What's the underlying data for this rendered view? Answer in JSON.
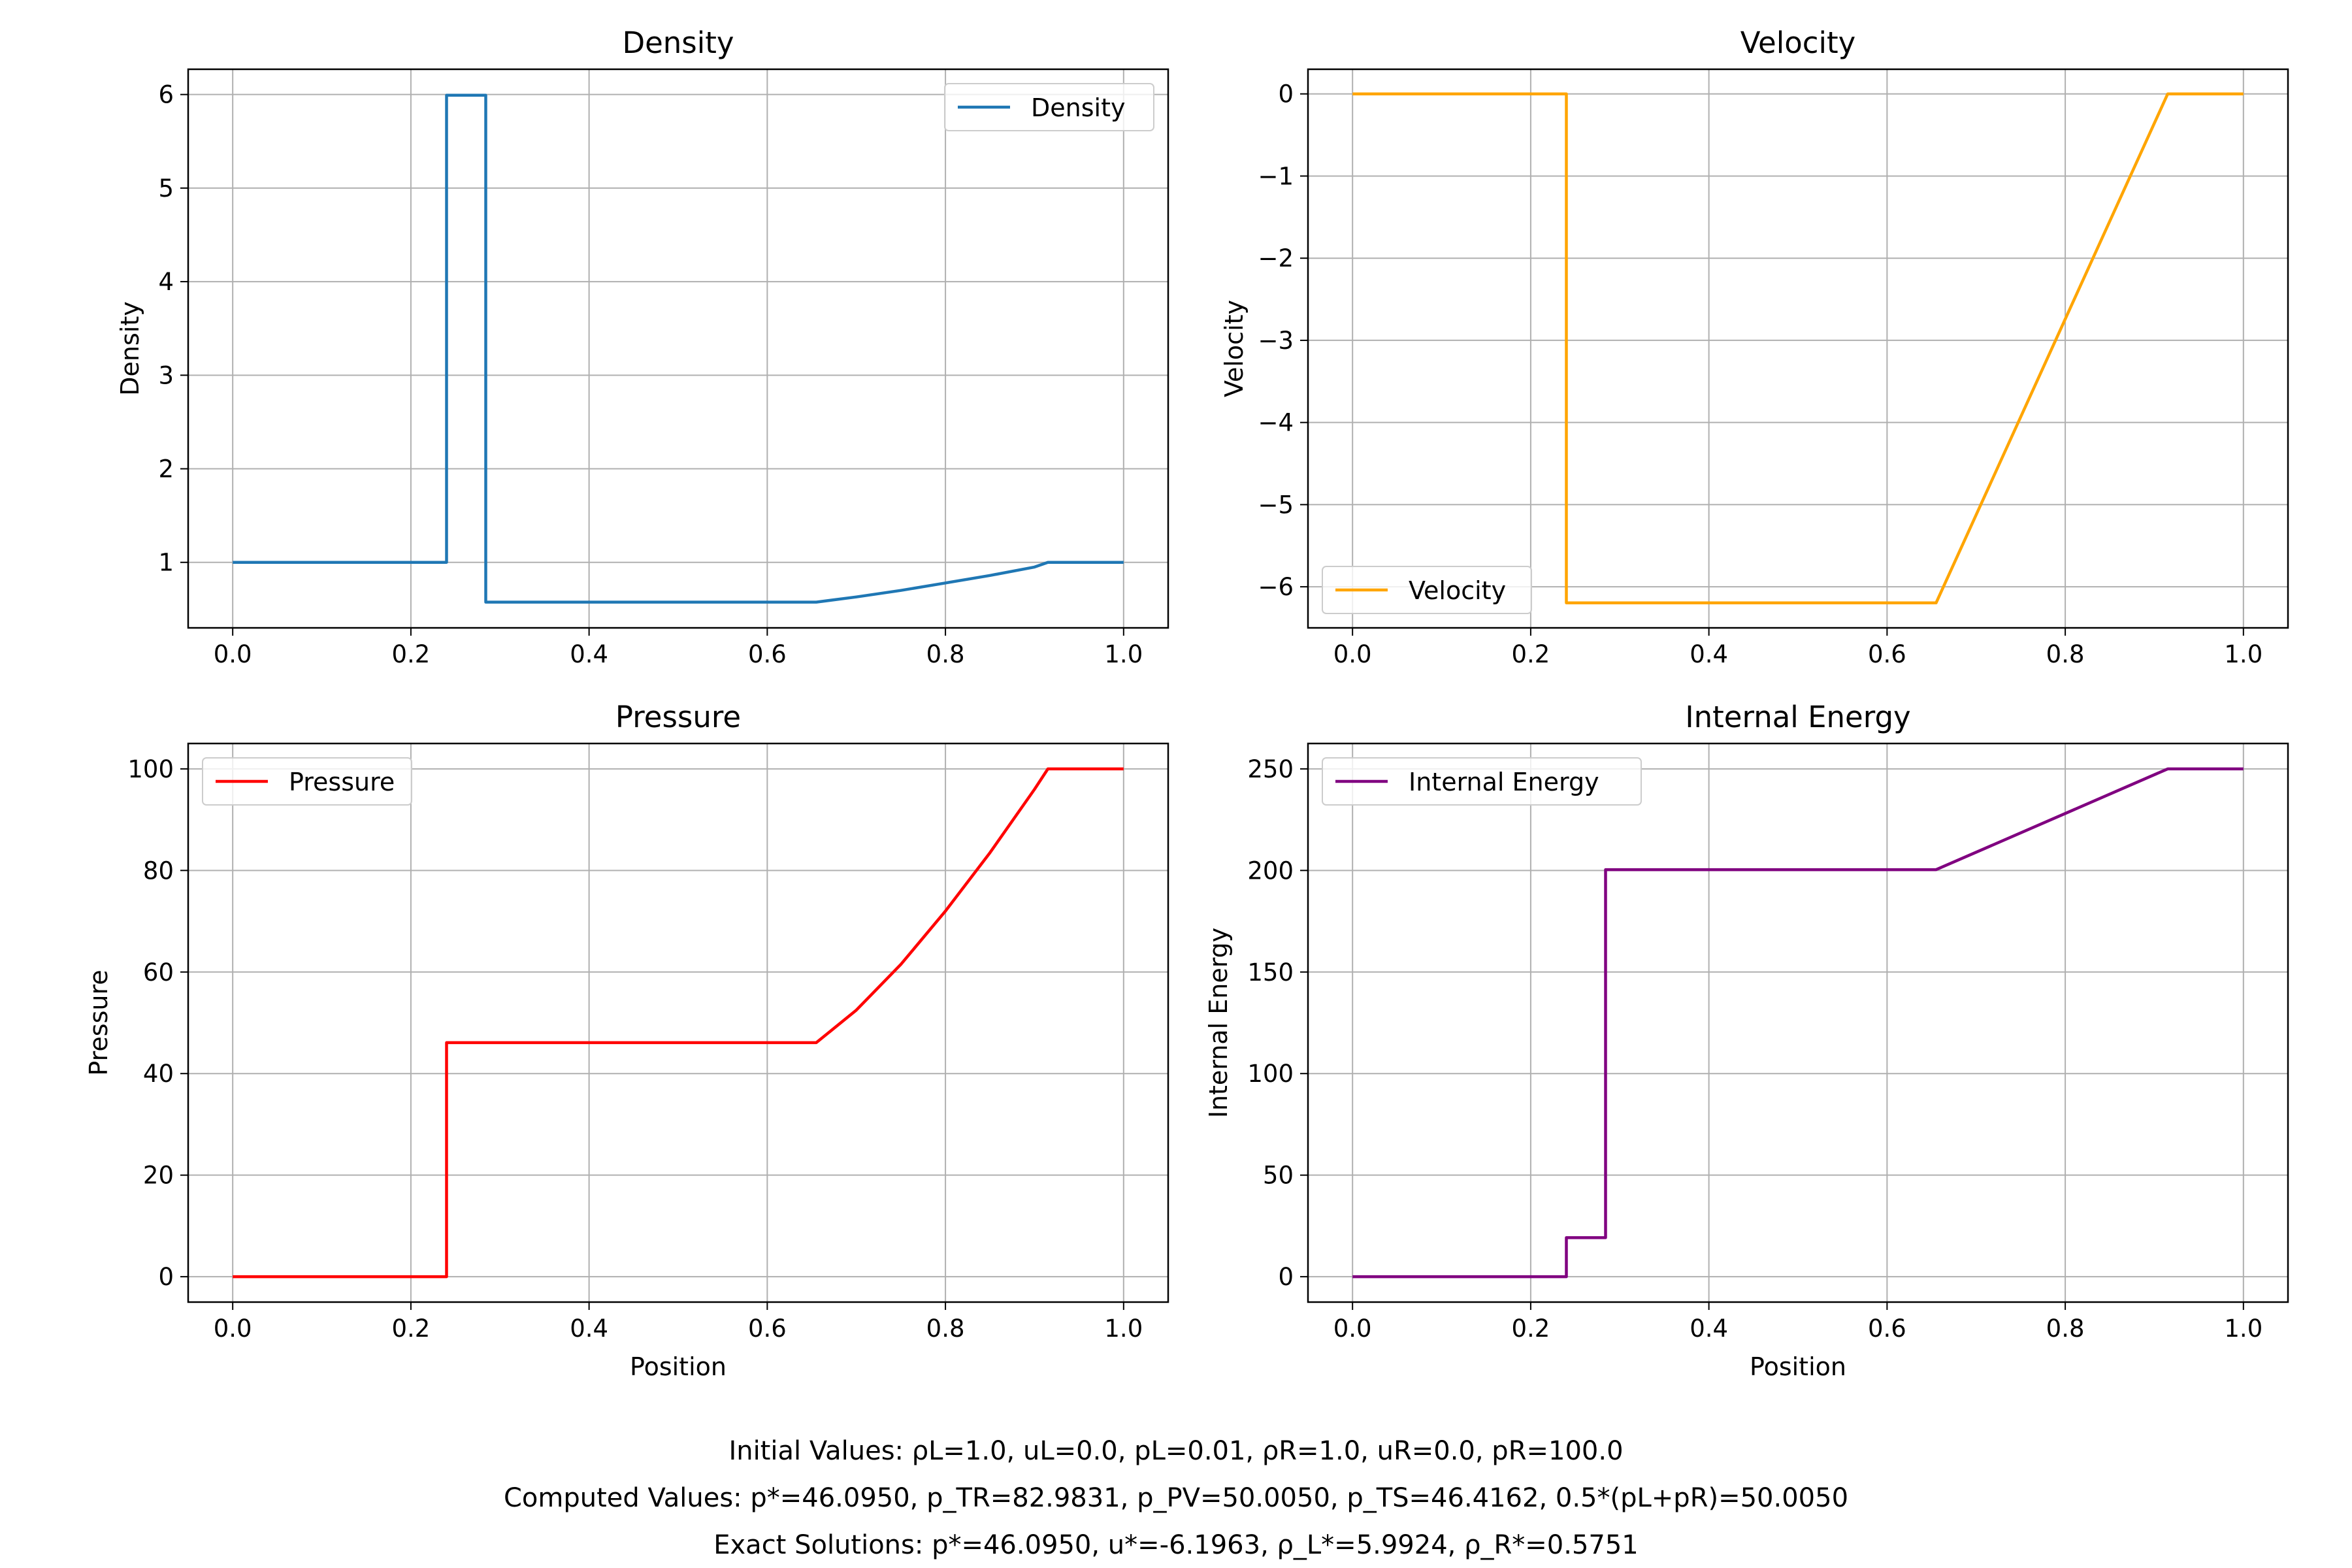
{
  "chart_data": [
    {
      "type": "line",
      "title": "Density",
      "xlabel": "",
      "ylabel": "Density",
      "xlim": [
        -0.05,
        1.05
      ],
      "ylim": [
        0.3,
        6.27
      ],
      "xticks": [
        0.0,
        0.2,
        0.4,
        0.6,
        0.8,
        1.0
      ],
      "xtick_labels": [
        "0.0",
        "0.2",
        "0.4",
        "0.6",
        "0.8",
        "1.0"
      ],
      "yticks": [
        1,
        2,
        3,
        4,
        5,
        6
      ],
      "ytick_labels": [
        "1",
        "2",
        "3",
        "4",
        "5",
        "6"
      ],
      "grid": true,
      "legend": "top-right",
      "series": [
        {
          "name": "Density",
          "color": "#1f77b4",
          "x": [
            0.0,
            0.24,
            0.24,
            0.284,
            0.284,
            0.655,
            0.7,
            0.75,
            0.8,
            0.85,
            0.9,
            0.915,
            1.0
          ],
          "y": [
            1.0,
            1.0,
            5.9924,
            5.9924,
            0.5751,
            0.5751,
            0.63,
            0.7,
            0.78,
            0.86,
            0.95,
            1.0,
            1.0
          ]
        }
      ]
    },
    {
      "type": "line",
      "title": "Velocity",
      "xlabel": "",
      "ylabel": "Velocity",
      "xlim": [
        -0.05,
        1.05
      ],
      "ylim": [
        -6.5,
        0.3
      ],
      "xticks": [
        0.0,
        0.2,
        0.4,
        0.6,
        0.8,
        1.0
      ],
      "xtick_labels": [
        "0.0",
        "0.2",
        "0.4",
        "0.6",
        "0.8",
        "1.0"
      ],
      "yticks": [
        0,
        -1,
        -2,
        -3,
        -4,
        -5,
        -6
      ],
      "ytick_labels": [
        "0",
        "−1",
        "−2",
        "−3",
        "−4",
        "−5",
        "−6"
      ],
      "grid": true,
      "legend": "bottom-left",
      "series": [
        {
          "name": "Velocity",
          "color": "#ffa500",
          "x": [
            0.0,
            0.24,
            0.24,
            0.655,
            0.915,
            1.0
          ],
          "y": [
            0.0,
            0.0,
            -6.1963,
            -6.1963,
            0.0,
            0.0
          ]
        }
      ]
    },
    {
      "type": "line",
      "title": "Pressure",
      "xlabel": "Position",
      "ylabel": "Pressure",
      "xlim": [
        -0.05,
        1.05
      ],
      "ylim": [
        -5,
        105
      ],
      "xticks": [
        0.0,
        0.2,
        0.4,
        0.6,
        0.8,
        1.0
      ],
      "xtick_labels": [
        "0.0",
        "0.2",
        "0.4",
        "0.6",
        "0.8",
        "1.0"
      ],
      "yticks": [
        0,
        20,
        40,
        60,
        80,
        100
      ],
      "ytick_labels": [
        "0",
        "20",
        "40",
        "60",
        "80",
        "100"
      ],
      "grid": true,
      "legend": "top-left",
      "series": [
        {
          "name": "Pressure",
          "color": "#ff0000",
          "x": [
            0.0,
            0.24,
            0.24,
            0.655,
            0.7,
            0.75,
            0.8,
            0.85,
            0.9,
            0.915,
            1.0
          ],
          "y": [
            0.01,
            0.01,
            46.095,
            46.095,
            52.5,
            61.5,
            72.0,
            83.5,
            96.0,
            100.0,
            100.0
          ]
        }
      ]
    },
    {
      "type": "line",
      "title": "Internal Energy",
      "xlabel": "Position",
      "ylabel": "Internal Energy",
      "xlim": [
        -0.05,
        1.05
      ],
      "ylim": [
        -12.5,
        262.5
      ],
      "xticks": [
        0.0,
        0.2,
        0.4,
        0.6,
        0.8,
        1.0
      ],
      "xtick_labels": [
        "0.0",
        "0.2",
        "0.4",
        "0.6",
        "0.8",
        "1.0"
      ],
      "yticks": [
        0,
        50,
        100,
        150,
        200,
        250
      ],
      "ytick_labels": [
        "0",
        "50",
        "100",
        "150",
        "200",
        "250"
      ],
      "grid": true,
      "legend": "top-left",
      "series": [
        {
          "name": "Internal Energy",
          "color": "#800080",
          "x": [
            0.0,
            0.24,
            0.24,
            0.284,
            0.284,
            0.655,
            0.915,
            1.0
          ],
          "y": [
            0.0,
            0.0,
            19.2,
            19.2,
            200.4,
            200.4,
            250.0,
            250.0
          ]
        }
      ]
    }
  ],
  "footer": {
    "initial": "Initial Values:  ρL=1.0, uL=0.0, pL=0.01,  ρR=1.0, uR=0.0, pR=100.0",
    "computed": "Computed Values:  p*=46.0950, p_TR=82.9831, p_PV=50.0050, p_TS=46.4162, 0.5*(pL+pR)=50.0050",
    "exact": "Exact Solutions:  p*=46.0950, u*=-6.1963, ρ_L*=5.9924, ρ_R*=0.5751"
  }
}
